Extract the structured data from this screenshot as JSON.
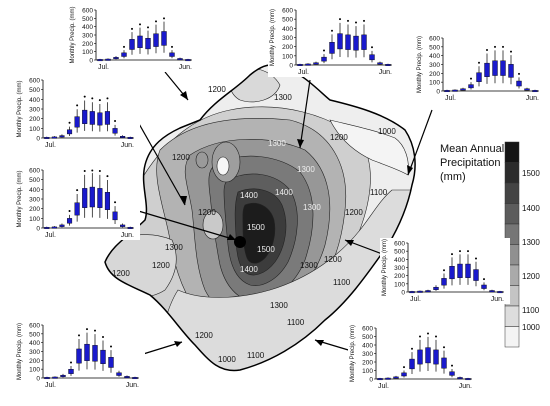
{
  "legend": {
    "title_lines": [
      "Mean Annual",
      "Precipitation",
      "(mm)"
    ],
    "labels": [
      "1500",
      "1400",
      "1300",
      "1200",
      "1100",
      "1000"
    ],
    "colors": [
      "#151515",
      "#2c2c2c",
      "#444444",
      "#5c5c5c",
      "#767676",
      "#909090",
      "#aaaaaa",
      "#c4c4c4",
      "#dddddd",
      "#f4f4f4"
    ]
  },
  "contour_labels": [
    "1200",
    "1300",
    "1200",
    "1300",
    "1200",
    "1000",
    "1300",
    "1300",
    "1200",
    "1100",
    "1400",
    "1400",
    "1500",
    "1500",
    "1400",
    "1300",
    "1200",
    "1200",
    "1300",
    "1200",
    "1300",
    "1200",
    "1100",
    "1100",
    "1000",
    "1200",
    "1100"
  ],
  "boxplot_common": {
    "y_axis_label": "Monthly Precip. (mm)",
    "y_ticks": [
      "0",
      "100",
      "200",
      "300",
      "400",
      "500",
      "600"
    ],
    "x_start_label": "Jul.",
    "x_end_label": "Jun.",
    "box_color": "#1a1acc",
    "months": 12
  },
  "chart_data": [
    {
      "type": "boxplot",
      "id": "top-left",
      "medians": [
        2,
        5,
        20,
        60,
        180,
        210,
        190,
        230,
        250,
        60,
        10,
        2
      ]
    },
    {
      "type": "boxplot",
      "id": "top-center",
      "medians": [
        2,
        5,
        15,
        60,
        180,
        250,
        240,
        230,
        240,
        80,
        15,
        2
      ]
    },
    {
      "type": "boxplot",
      "id": "top-right",
      "medians": [
        2,
        5,
        15,
        50,
        150,
        230,
        250,
        250,
        220,
        80,
        15,
        2
      ]
    },
    {
      "type": "boxplot",
      "id": "upper-left",
      "medians": [
        2,
        5,
        15,
        60,
        160,
        210,
        200,
        190,
        200,
        70,
        10,
        2
      ]
    },
    {
      "type": "boxplot",
      "id": "mid-left",
      "medians": [
        2,
        5,
        20,
        70,
        190,
        300,
        310,
        300,
        270,
        120,
        20,
        2
      ]
    },
    {
      "type": "boxplot",
      "id": "mid-right",
      "medians": [
        2,
        5,
        10,
        40,
        120,
        230,
        250,
        250,
        200,
        60,
        10,
        2
      ]
    },
    {
      "type": "boxplot",
      "id": "bottom-left",
      "medians": [
        2,
        5,
        20,
        70,
        240,
        280,
        270,
        230,
        170,
        40,
        10,
        2
      ]
    },
    {
      "type": "boxplot",
      "id": "bottom-right",
      "medians": [
        2,
        5,
        15,
        50,
        170,
        250,
        270,
        250,
        180,
        60,
        10,
        2
      ]
    }
  ]
}
